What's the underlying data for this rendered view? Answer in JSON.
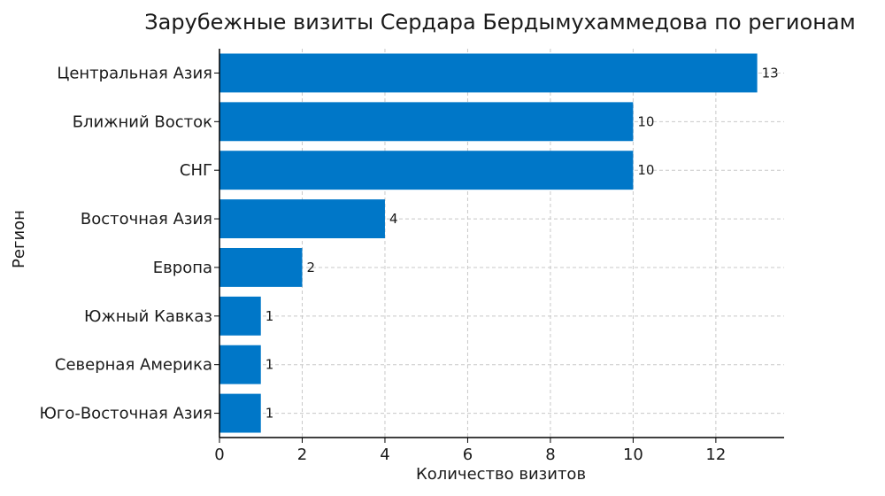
{
  "chart_data": {
    "type": "bar",
    "orientation": "horizontal",
    "title": "Зарубежные визиты Сердара Бердымухаммедова по регионам",
    "xlabel": "Количество визитов",
    "ylabel": "Регион",
    "categories": [
      "Центральная Азия",
      "Ближний Восток",
      "СНГ",
      "Восточная Азия",
      "Европа",
      "Южный Кавказ",
      "Северная Америка",
      "Юго-Восточная Азия"
    ],
    "values": [
      13,
      10,
      10,
      4,
      2,
      1,
      1,
      1
    ],
    "xlim": [
      0,
      13.65
    ],
    "xticks": [
      0,
      2,
      4,
      6,
      8,
      10,
      12
    ],
    "xtick_labels": [
      "0",
      "2",
      "4",
      "6",
      "8",
      "10",
      "12"
    ],
    "grid": true,
    "bar_color": "#0077c8"
  }
}
